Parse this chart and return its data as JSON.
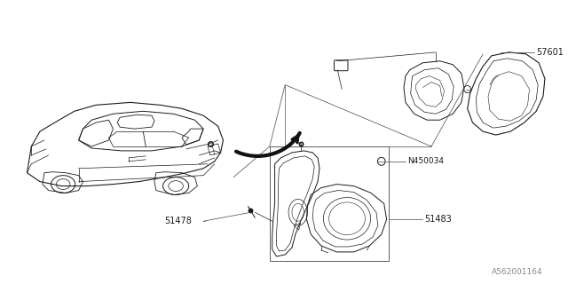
{
  "bg_color": "#ffffff",
  "lc": "#1a1a1a",
  "lc_thin": "#333333",
  "label_color": "#1a1a1a",
  "gray_label": "#888888",
  "fig_width": 6.4,
  "fig_height": 3.2,
  "dpi": 100
}
